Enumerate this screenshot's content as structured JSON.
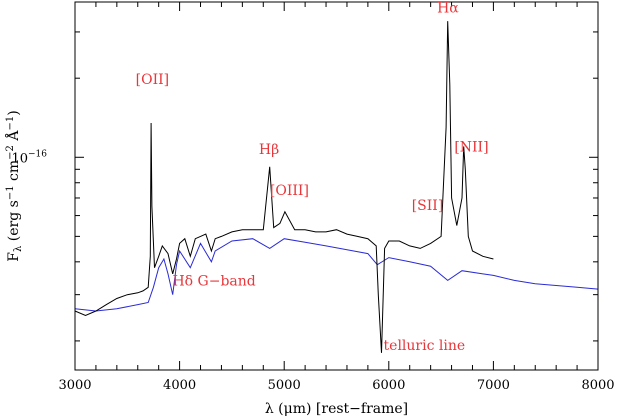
{
  "chart_data": {
    "type": "line",
    "title": "",
    "xlabel": "λ (μm) [rest−frame]",
    "ylabel": "F_λ (erg s⁻¹ cm⁻² Å⁻¹)",
    "ylabel_parts": {
      "f": "F",
      "sub": "λ",
      "rest": " (erg s",
      "e1": "−1",
      "cm": " cm",
      "e2": "−2",
      "ang": " Å",
      "e3": "−1",
      "close": ")"
    },
    "x_axis": {
      "range": [
        3000,
        8000
      ],
      "ticks": [
        3000,
        4000,
        5000,
        6000,
        7000,
        8000
      ],
      "tick_labels": [
        "3000",
        "4000",
        "5000",
        "6000",
        "7000",
        "8000"
      ]
    },
    "y_axis": {
      "scale": "log",
      "range": [
        1.55e-17,
        3.9e-16
      ],
      "labeled_ticks": [
        {
          "value": 1e-16,
          "label": "10",
          "exp": "−16"
        }
      ]
    },
    "colors": {
      "observed": "#000000",
      "model": "#2b2bd6",
      "annotations": "#e8363a"
    },
    "series": [
      {
        "id": "observed",
        "x": [
          3000,
          3100,
          3200,
          3300,
          3400,
          3500,
          3600,
          3650,
          3700,
          3720,
          3728,
          3735,
          3760,
          3800,
          3835,
          3889,
          3934,
          3970,
          4000,
          4050,
          4102,
          4150,
          4200,
          4250,
          4304,
          4340,
          4400,
          4500,
          4600,
          4700,
          4800,
          4861,
          4900,
          4959,
          5007,
          5100,
          5200,
          5300,
          5400,
          5500,
          5600,
          5700,
          5800,
          5880,
          5900,
          5930,
          5960,
          6000,
          6100,
          6200,
          6300,
          6400,
          6500,
          6548,
          6563,
          6583,
          6600,
          6650,
          6700,
          6716,
          6731,
          6760,
          6800,
          6900,
          7000
        ],
        "y": [
          2.6e-17,
          2.5e-17,
          2.6e-17,
          2.75e-17,
          2.9e-17,
          3e-17,
          3.05e-17,
          3.1e-17,
          3.2e-17,
          4.2e-17,
          1.35e-16,
          6.5e-17,
          3.8e-17,
          4.2e-17,
          4.6e-17,
          4.3e-17,
          3.6e-17,
          4.1e-17,
          4.7e-17,
          4.9e-17,
          4.2e-17,
          4.9e-17,
          5e-17,
          5.1e-17,
          4.4e-17,
          4.9e-17,
          5e-17,
          5.2e-17,
          5.3e-17,
          5.3e-17,
          5.3e-17,
          9.2e-17,
          5.4e-17,
          5.6e-17,
          6.2e-17,
          5.3e-17,
          5.3e-17,
          5.2e-17,
          5.2e-17,
          5.3e-17,
          5.1e-17,
          5e-17,
          4.9e-17,
          4.6e-17,
          3e-17,
          1.8e-17,
          4.5e-17,
          4.8e-17,
          4.8e-17,
          4.6e-17,
          4.5e-17,
          4.7e-17,
          5e-17,
          1.3e-16,
          3.3e-16,
          1.9e-16,
          7e-17,
          5.5e-17,
          7e-17,
          1.1e-16,
          9e-17,
          5e-17,
          4.4e-17,
          4.2e-17,
          4.1e-17
        ]
      },
      {
        "id": "model",
        "x": [
          3000,
          3200,
          3400,
          3600,
          3700,
          3750,
          3800,
          3850,
          3889,
          3934,
          3970,
          4000,
          4102,
          4200,
          4304,
          4340,
          4500,
          4700,
          4861,
          5000,
          5200,
          5400,
          5600,
          5800,
          5890,
          6000,
          6200,
          6400,
          6563,
          6700,
          6900,
          7000,
          7200,
          7400,
          7600,
          7800,
          8000
        ],
        "y": [
          2.65e-17,
          2.6e-17,
          2.65e-17,
          2.75e-17,
          2.8e-17,
          3.2e-17,
          3.8e-17,
          4.1e-17,
          3.6e-17,
          3e-17,
          3.9e-17,
          4.4e-17,
          3.8e-17,
          4.7e-17,
          4e-17,
          4.4e-17,
          4.8e-17,
          4.9e-17,
          4.5e-17,
          4.9e-17,
          4.75e-17,
          4.6e-17,
          4.45e-17,
          4.3e-17,
          3.9e-17,
          4.15e-17,
          4e-17,
          3.85e-17,
          3.4e-17,
          3.7e-17,
          3.6e-17,
          3.55e-17,
          3.4e-17,
          3.3e-17,
          3.25e-17,
          3.2e-17,
          3.15e-17
        ]
      }
    ],
    "annotations": [
      {
        "id": "oii",
        "text": "[OII]",
        "x": 3740,
        "y": 1.9e-16
      },
      {
        "id": "hdelta",
        "text": "Hδ G−band",
        "x": 4330,
        "y": 3.25e-17
      },
      {
        "id": "hbeta",
        "text": "Hβ",
        "x": 4855,
        "y": 1.03e-16
      },
      {
        "id": "oiii",
        "text": "[OIII]",
        "x": 5050,
        "y": 7.2e-17
      },
      {
        "id": "sii",
        "text": "[SII]",
        "x": 6370,
        "y": 6.3e-17
      },
      {
        "id": "halpha",
        "text": "Hα",
        "x": 6565,
        "y": 3.55e-16
      },
      {
        "id": "nii",
        "text": "[NII]",
        "x": 6790,
        "y": 1.05e-16
      },
      {
        "id": "telluric",
        "text": "telluric line",
        "x": 6340,
        "y": 1.85e-17
      }
    ]
  }
}
